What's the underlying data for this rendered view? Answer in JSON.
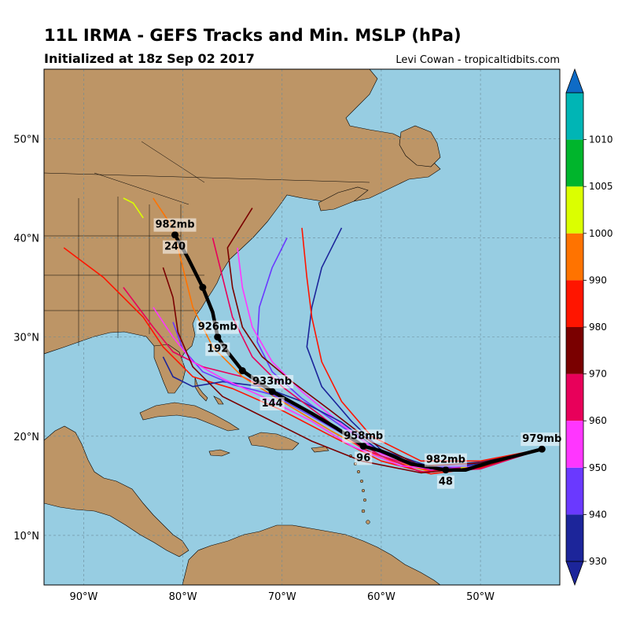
{
  "title": "11L IRMA - GEFS Tracks and Min. MSLP (hPa)",
  "subtitle": "Initialized at 18z Sep 02 2017",
  "credit": "Levi Cowan - tropicaltidbits.com",
  "map": {
    "lon_range": [
      -94,
      -42
    ],
    "lat_range": [
      5,
      57
    ],
    "lon_ticks": [
      {
        "lon": -90,
        "label": "90°W"
      },
      {
        "lon": -80,
        "label": "80°W"
      },
      {
        "lon": -70,
        "label": "70°W"
      },
      {
        "lon": -60,
        "label": "60°W"
      },
      {
        "lon": -50,
        "label": "50°W"
      }
    ],
    "lat_ticks": [
      {
        "lat": 10,
        "label": "10°N"
      },
      {
        "lat": 20,
        "label": "20°N"
      },
      {
        "lat": 30,
        "label": "30°N"
      },
      {
        "lat": 40,
        "label": "40°N"
      },
      {
        "lat": 50,
        "label": "50°N"
      }
    ],
    "ocean_color": "#97cde2",
    "land_color": "#bd9566",
    "gridlines": "dashed"
  },
  "colorbar": {
    "levels": [
      930,
      940,
      950,
      960,
      970,
      980,
      990,
      1000,
      1005,
      1010
    ],
    "colors": [
      "#1c259a",
      "#6a39ff",
      "#ff36ff",
      "#e8005a",
      "#7a0000",
      "#ff1500",
      "#ff7300",
      "#dbff00",
      "#00b52c",
      "#00b5b5"
    ],
    "under_color": "#1c259a",
    "over_color": "#0e6bc6"
  },
  "chart_data": {
    "type": "map-tracks",
    "mean_track": [
      {
        "lon": -43.8,
        "lat": 18.7
      },
      {
        "lon": -46.5,
        "lat": 18.0
      },
      {
        "lon": -49.0,
        "lat": 17.4
      },
      {
        "lon": -51.5,
        "lat": 16.6
      },
      {
        "lon": -53.5,
        "lat": 16.6
      },
      {
        "lon": -57.0,
        "lat": 17.2
      },
      {
        "lon": -60.0,
        "lat": 18.5
      },
      {
        "lon": -61.8,
        "lat": 19.0
      },
      {
        "lon": -64.5,
        "lat": 20.8
      },
      {
        "lon": -67.0,
        "lat": 22.3
      },
      {
        "lon": -71.0,
        "lat": 24.5
      },
      {
        "lon": -74.0,
        "lat": 26.6
      },
      {
        "lon": -75.5,
        "lat": 28.5
      },
      {
        "lon": -76.5,
        "lat": 30.0
      },
      {
        "lon": -77.0,
        "lat": 32.5
      },
      {
        "lon": -78.0,
        "lat": 35.0
      },
      {
        "lon": -79.5,
        "lat": 38.0
      },
      {
        "lon": -80.8,
        "lat": 40.3
      }
    ],
    "key_points": [
      {
        "lon": -43.8,
        "lat": 18.7
      },
      {
        "lon": -53.5,
        "lat": 16.6
      },
      {
        "lon": -61.8,
        "lat": 19.0
      },
      {
        "lon": -71.0,
        "lat": 24.5
      },
      {
        "lon": -74.0,
        "lat": 26.6
      },
      {
        "lon": -76.5,
        "lat": 30.0
      },
      {
        "lon": -78.0,
        "lat": 35.0
      },
      {
        "lon": -80.8,
        "lat": 40.3
      }
    ],
    "annotations": [
      {
        "lon": -43.8,
        "lat": 18.7,
        "mslp": "979mb",
        "hour": ""
      },
      {
        "lon": -53.5,
        "lat": 16.6,
        "mslp": "982mb",
        "hour": "48"
      },
      {
        "lon": -61.8,
        "lat": 19.0,
        "mslp": "958mb",
        "hour": "96"
      },
      {
        "lon": -71.0,
        "lat": 24.5,
        "mslp": "933mb",
        "hour": "144"
      },
      {
        "lon": -76.5,
        "lat": 30.0,
        "mslp": "926mb",
        "hour": "192"
      },
      {
        "lon": -80.8,
        "lat": 40.3,
        "mslp": "982mb",
        "hour": "240"
      }
    ],
    "members": [
      {
        "color": "#6a39ff",
        "points": [
          [
            -43.8,
            18.7
          ],
          [
            -50,
            17.2
          ],
          [
            -55,
            16.8
          ],
          [
            -60,
            18.3
          ],
          [
            -64,
            21
          ],
          [
            -68,
            23.8
          ],
          [
            -71,
            26.5
          ],
          [
            -72.5,
            29.5
          ],
          [
            -72.3,
            33
          ],
          [
            -71,
            37
          ],
          [
            -69.5,
            40
          ]
        ]
      },
      {
        "color": "#1c259a",
        "points": [
          [
            -43.8,
            18.7
          ],
          [
            -50,
            17.4
          ],
          [
            -55,
            16.9
          ],
          [
            -60,
            18.6
          ],
          [
            -63,
            21.5
          ],
          [
            -66,
            25
          ],
          [
            -67.5,
            29
          ],
          [
            -67,
            33
          ],
          [
            -66,
            37
          ],
          [
            -64,
            41
          ]
        ]
      },
      {
        "color": "#ff36ff",
        "points": [
          [
            -43.8,
            18.7
          ],
          [
            -50,
            17.1
          ],
          [
            -55,
            16.6
          ],
          [
            -60,
            18.2
          ],
          [
            -64,
            21.2
          ],
          [
            -68,
            24.5
          ],
          [
            -71,
            27.5
          ],
          [
            -73,
            31
          ],
          [
            -74,
            35
          ],
          [
            -74.5,
            39
          ]
        ]
      },
      {
        "color": "#e8005a",
        "points": [
          [
            -43.8,
            18.7
          ],
          [
            -50,
            17.0
          ],
          [
            -55,
            16.5
          ],
          [
            -60,
            18.0
          ],
          [
            -64,
            20.5
          ],
          [
            -69,
            23.5
          ],
          [
            -74,
            26
          ],
          [
            -78,
            27
          ],
          [
            -81,
            28.5
          ],
          [
            -83,
            31
          ],
          [
            -86,
            35
          ]
        ]
      },
      {
        "color": "#ff1500",
        "points": [
          [
            -43.8,
            18.7
          ],
          [
            -50,
            16.8
          ],
          [
            -55,
            16.2
          ],
          [
            -60,
            17.5
          ],
          [
            -65,
            20
          ],
          [
            -70,
            22.6
          ],
          [
            -75,
            24.8
          ],
          [
            -79,
            26
          ],
          [
            -82,
            29
          ],
          [
            -84,
            32
          ],
          [
            -88,
            36
          ],
          [
            -92,
            39
          ]
        ]
      },
      {
        "color": "#7a0000",
        "points": [
          [
            -43.8,
            18.7
          ],
          [
            -50,
            17.3
          ],
          [
            -56,
            17.0
          ],
          [
            -61,
            19.4
          ],
          [
            -65,
            22.5
          ],
          [
            -69,
            25.5
          ],
          [
            -72,
            28
          ],
          [
            -74,
            31
          ],
          [
            -75,
            35
          ],
          [
            -75.5,
            39
          ],
          [
            -73,
            43
          ]
        ]
      },
      {
        "color": "#ff7300",
        "points": [
          [
            -43.8,
            18.7
          ],
          [
            -50,
            16.9
          ],
          [
            -55,
            16.4
          ],
          [
            -60,
            17.8
          ],
          [
            -65,
            20.5
          ],
          [
            -70,
            23.5
          ],
          [
            -74,
            26
          ],
          [
            -77,
            29
          ],
          [
            -79,
            33
          ],
          [
            -80,
            37
          ],
          [
            -81,
            41
          ],
          [
            -83,
            44
          ]
        ]
      },
      {
        "color": "#dbff00",
        "points": [
          [
            -43.8,
            18.7
          ],
          [
            -48,
            17.6
          ],
          [
            -52,
            16.8
          ]
        ]
      },
      {
        "color": "#dbff00",
        "points": [
          [
            -84,
            42
          ],
          [
            -85,
            43.5
          ],
          [
            -86,
            44
          ]
        ]
      },
      {
        "color": "#1c259a",
        "points": [
          [
            -43.8,
            18.7
          ],
          [
            -50,
            17.2
          ],
          [
            -55,
            16.7
          ],
          [
            -60,
            18.4
          ],
          [
            -64,
            21.4
          ],
          [
            -68,
            23.5
          ],
          [
            -72,
            25
          ],
          [
            -76,
            25.5
          ],
          [
            -79,
            25
          ],
          [
            -81,
            26
          ],
          [
            -82,
            28
          ]
        ]
      },
      {
        "color": "#6a39ff",
        "points": [
          [
            -43.8,
            18.7
          ],
          [
            -50,
            17.0
          ],
          [
            -56,
            16.8
          ],
          [
            -62,
            19.2
          ],
          [
            -67,
            22
          ],
          [
            -71,
            24.2
          ],
          [
            -75,
            25.2
          ],
          [
            -78,
            26.5
          ],
          [
            -80,
            28.8
          ],
          [
            -81,
            31.5
          ]
        ]
      },
      {
        "color": "#e8005a",
        "points": [
          [
            -43.8,
            18.7
          ],
          [
            -50,
            16.7
          ],
          [
            -56,
            16.4
          ],
          [
            -62,
            18.8
          ],
          [
            -66,
            22
          ],
          [
            -70,
            25
          ],
          [
            -73,
            28
          ],
          [
            -75,
            32
          ],
          [
            -76,
            36
          ],
          [
            -77,
            40
          ]
        ]
      },
      {
        "color": "#ff1500",
        "points": [
          [
            -43.8,
            18.7
          ],
          [
            -50,
            17.5
          ],
          [
            -56,
            17.5
          ],
          [
            -61,
            20
          ],
          [
            -64,
            23.5
          ],
          [
            -66,
            27.5
          ],
          [
            -67,
            32
          ],
          [
            -67.5,
            36
          ],
          [
            -68,
            41
          ]
        ]
      },
      {
        "color": "#ff36ff",
        "points": [
          [
            -43.8,
            18.7
          ],
          [
            -52,
            16.5
          ],
          [
            -58,
            17
          ],
          [
            -63,
            19
          ],
          [
            -67,
            21.5
          ],
          [
            -72,
            24
          ],
          [
            -76,
            25.8
          ],
          [
            -79,
            27.5
          ],
          [
            -81,
            30
          ],
          [
            -83,
            33
          ]
        ]
      },
      {
        "color": "#7a0000",
        "points": [
          [
            -43.8,
            18.7
          ],
          [
            -50,
            16.9
          ],
          [
            -56,
            16.3
          ],
          [
            -62,
            17.5
          ],
          [
            -67,
            19.5
          ],
          [
            -72,
            22
          ],
          [
            -76,
            24
          ],
          [
            -79,
            27
          ],
          [
            -80.5,
            30.5
          ],
          [
            -81,
            34
          ],
          [
            -82,
            37
          ]
        ]
      }
    ]
  }
}
